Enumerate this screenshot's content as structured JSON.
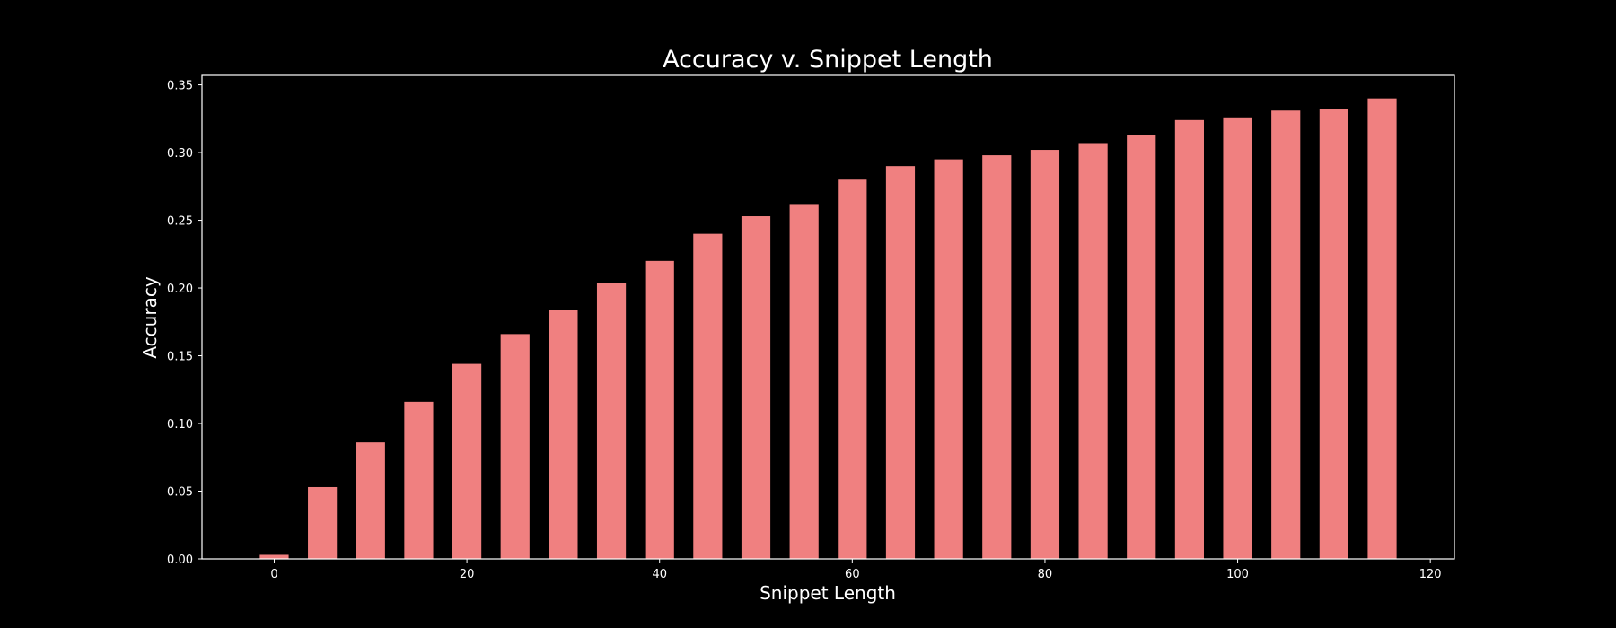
{
  "chart_data": {
    "type": "bar",
    "title": "Accuracy v. Snippet Length",
    "xlabel": "Snippet Length",
    "ylabel": "Accuracy",
    "x": [
      0,
      5,
      10,
      15,
      20,
      25,
      30,
      35,
      40,
      45,
      50,
      55,
      60,
      65,
      70,
      75,
      80,
      85,
      90,
      95,
      100,
      105,
      110,
      115
    ],
    "values": [
      0.003,
      0.053,
      0.086,
      0.116,
      0.144,
      0.166,
      0.184,
      0.204,
      0.22,
      0.24,
      0.253,
      0.262,
      0.28,
      0.29,
      0.295,
      0.298,
      0.302,
      0.307,
      0.313,
      0.324,
      0.326,
      0.331,
      0.332,
      0.34
    ],
    "bar_width": 3,
    "xlim": [
      -7.5,
      122.5
    ],
    "ylim": [
      0,
      0.357
    ],
    "xticks": [
      0,
      20,
      40,
      60,
      80,
      100,
      120
    ],
    "xtick_labels": [
      "0",
      "20",
      "40",
      "60",
      "80",
      "100",
      "120"
    ],
    "yticks": [
      0,
      0.05,
      0.1,
      0.15,
      0.2,
      0.25,
      0.3,
      0.35
    ],
    "ytick_labels": [
      "0.00",
      "0.05",
      "0.10",
      "0.15",
      "0.20",
      "0.25",
      "0.30",
      "0.35"
    ],
    "grid": false,
    "colors": {
      "background": "#000000",
      "bar": "#f08080",
      "axes": "#ffffff",
      "text": "#ffffff"
    }
  }
}
